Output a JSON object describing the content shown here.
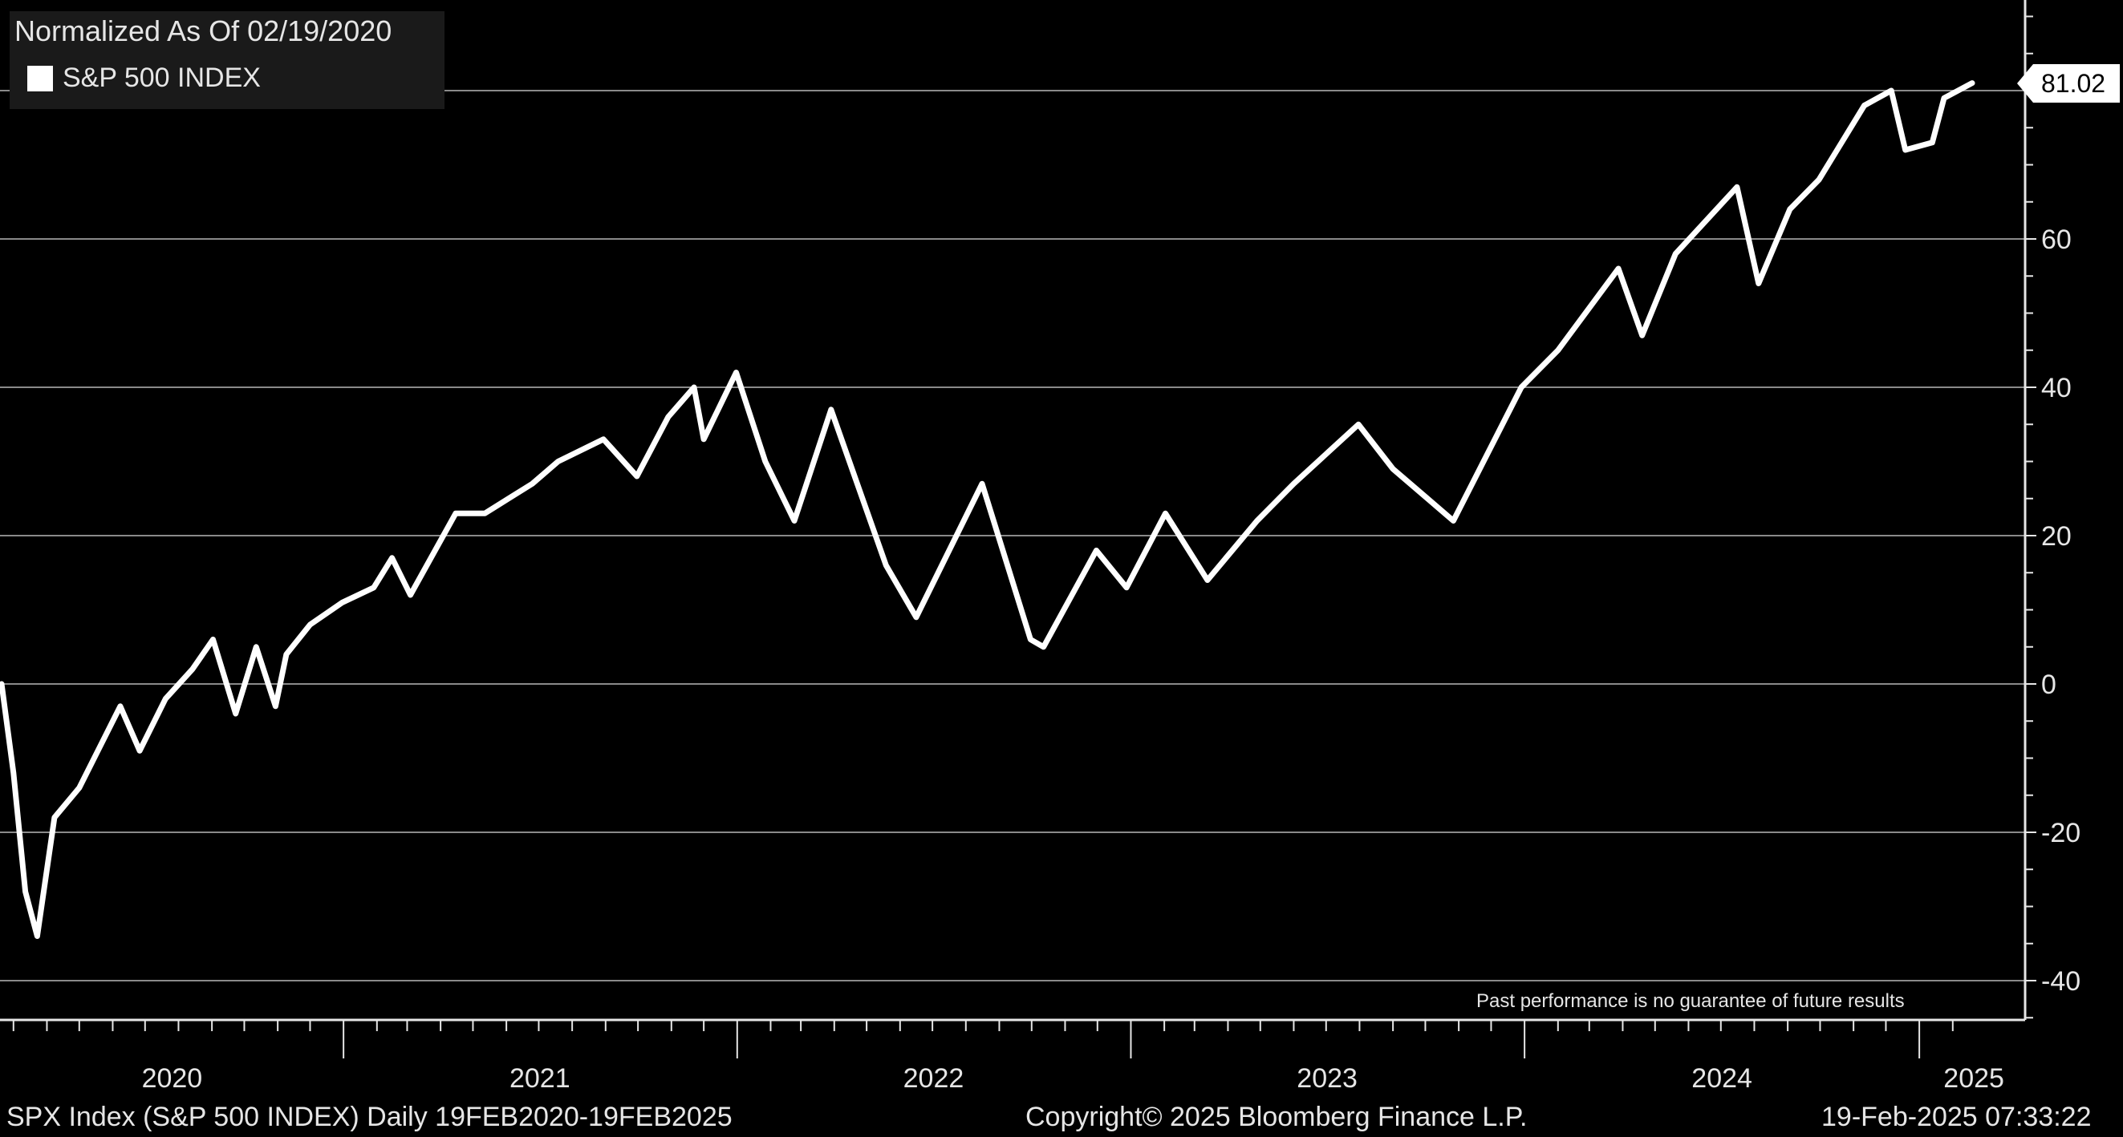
{
  "chart_data": {
    "type": "line",
    "legend_title": "Normalized As Of 02/19/2020",
    "legend_placement": "top-left",
    "series": [
      {
        "name": "S&P 500 INDEX",
        "color": "#ffffff",
        "x": [
          "2020-02-19",
          "2020-03-01",
          "2020-03-12",
          "2020-03-23",
          "2020-04-08",
          "2020-05-01",
          "2020-06-08",
          "2020-06-26",
          "2020-07-20",
          "2020-08-14",
          "2020-09-02",
          "2020-09-23",
          "2020-10-12",
          "2020-10-30",
          "2020-11-09",
          "2020-12-01",
          "2020-12-31",
          "2021-01-29",
          "2021-02-15",
          "2021-03-04",
          "2021-04-15",
          "2021-05-12",
          "2021-06-25",
          "2021-07-19",
          "2021-08-30",
          "2021-09-30",
          "2021-10-29",
          "2021-11-22",
          "2021-12-01",
          "2021-12-31",
          "2022-01-27",
          "2022-02-23",
          "2022-03-29",
          "2022-05-19",
          "2022-06-16",
          "2022-08-16",
          "2022-09-30",
          "2022-10-12",
          "2022-11-30",
          "2022-12-28",
          "2023-02-02",
          "2023-03-13",
          "2023-04-28",
          "2023-06-01",
          "2023-07-31",
          "2023-09-01",
          "2023-10-27",
          "2023-12-29",
          "2024-02-01",
          "2024-03-28",
          "2024-04-19",
          "2024-05-20",
          "2024-07-16",
          "2024-08-05",
          "2024-09-03",
          "2024-09-30",
          "2024-11-11",
          "2024-12-06",
          "2024-12-19",
          "2025-01-13",
          "2025-01-24",
          "2025-02-19"
        ],
        "values": [
          0,
          -12,
          -28,
          -34,
          -18,
          -14,
          -3,
          -9,
          -2,
          2,
          6,
          -4,
          5,
          -3,
          4,
          8,
          11,
          13,
          17,
          12,
          23,
          23,
          27,
          30,
          33,
          28,
          36,
          40,
          33,
          42,
          30,
          22,
          37,
          16,
          9,
          27,
          6,
          5,
          18,
          13,
          23,
          14,
          22,
          27,
          35,
          29,
          22,
          40,
          45,
          56,
          47,
          58,
          67,
          54,
          64,
          68,
          78,
          80,
          72,
          73,
          79,
          81.02
        ]
      }
    ],
    "x_ticks": [
      "2020",
      "2021",
      "2022",
      "2023",
      "2024",
      "2025"
    ],
    "y_ticks": [
      "-40",
      "-20",
      "0",
      "20",
      "40",
      "60"
    ],
    "ylim": [
      -45,
      91
    ],
    "grid": true,
    "last_value_label": "81.02",
    "disclaimer": "Past performance is no guarantee of future results",
    "footer": {
      "left": "SPX Index (S&P 500 INDEX)  Daily 19FEB2020-19FEB2025",
      "center": "Copyright© 2025 Bloomberg Finance L.P.",
      "right": "19-Feb-2025 07:33:22"
    }
  }
}
